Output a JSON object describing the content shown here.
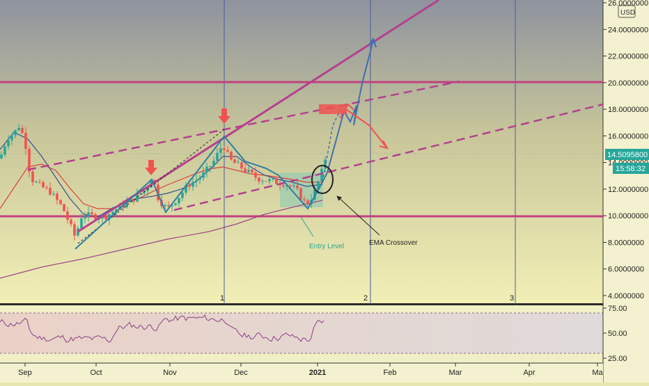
{
  "chart_data": {
    "type": "candlestick",
    "currency": "USD",
    "price_axis": {
      "min": 3.0,
      "max": 26.2,
      "ticks": [
        "4.0000000",
        "6.0000000",
        "8.0000000",
        "10.0000000",
        "12.0000000",
        "14.0000000",
        "16.0000000",
        "18.0000000",
        "20.0000000",
        "22.0000000",
        "24.0000000",
        "26.0000000"
      ],
      "tick_values": [
        4,
        6,
        8,
        10,
        12,
        14,
        16,
        18,
        20,
        22,
        24,
        26
      ]
    },
    "time_axis": {
      "labels": [
        "Sep",
        "Oct",
        "Nov",
        "Dec",
        "2021",
        "Feb",
        "Mar",
        "Apr",
        "Ma"
      ],
      "bold_label": "2021"
    },
    "current_price": "14.5095800",
    "current_price_value": 14.51,
    "countdown": "15:58:32",
    "horizontal_levels": [
      20.0,
      9.95
    ],
    "wave_labels": [
      "1",
      "2",
      "3"
    ],
    "annotations": {
      "entry": "Entry Level",
      "crossover": "EMA Crossover"
    },
    "rsi": {
      "ticks": [
        "75.00",
        "50.00",
        "25.00"
      ],
      "tick_values": [
        75,
        50,
        25
      ],
      "band_upper": 70,
      "band_lower": 30
    },
    "colors": {
      "up": "#26a69a",
      "down": "#ef5350",
      "level": "#c2407e",
      "trend": "#b5408f",
      "elliott": "#3f6fb0",
      "price_tag": "#26a69a",
      "vline": "#4a5aa0"
    }
  }
}
